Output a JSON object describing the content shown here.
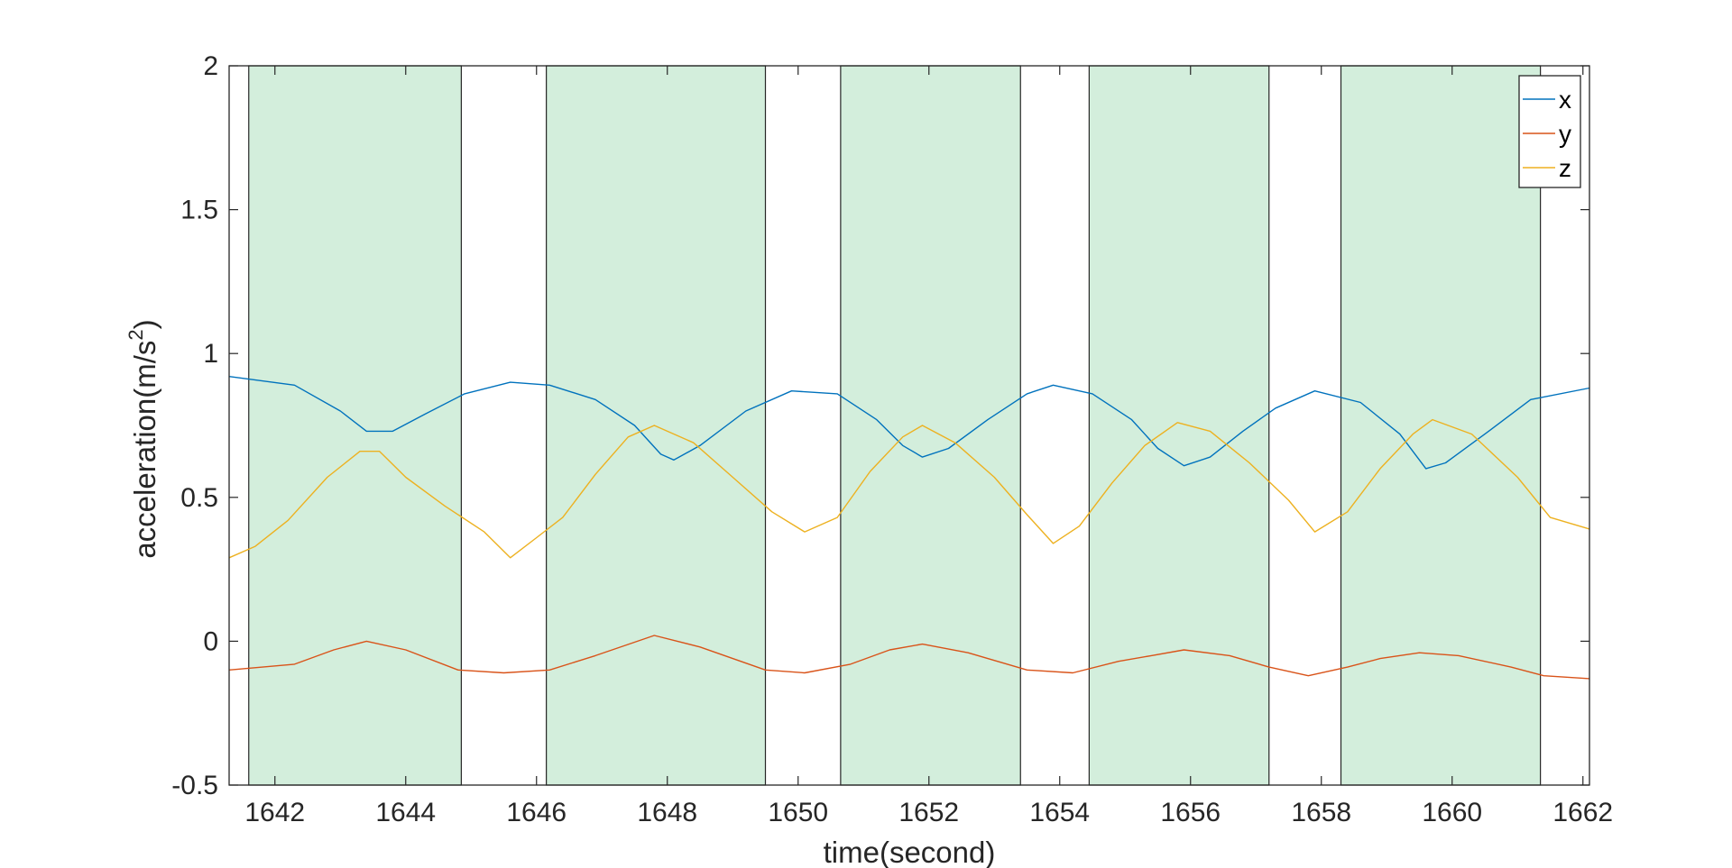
{
  "chart_data": {
    "type": "line",
    "xlabel": "time(second)",
    "ylabel": "acceleration(m/s",
    "ylabel_superscript": "2",
    "ylabel_suffix": ")",
    "xlim": [
      1641.3,
      1662.1
    ],
    "ylim": [
      -0.5,
      2
    ],
    "x_ticks": [
      1642,
      1644,
      1646,
      1648,
      1650,
      1652,
      1654,
      1656,
      1658,
      1660,
      1662
    ],
    "y_ticks": [
      -0.5,
      0,
      0.5,
      1,
      1.5,
      2
    ],
    "y_tick_labels": [
      "-0.5",
      "0",
      "0.5",
      "1",
      "1.5",
      "2"
    ],
    "grid": false,
    "legend_position": "top-right",
    "shaded_intervals": [
      [
        1641.6,
        1644.85
      ],
      [
        1646.15,
        1649.5
      ],
      [
        1650.65,
        1653.4
      ],
      [
        1654.45,
        1657.2
      ],
      [
        1658.3,
        1661.35
      ]
    ],
    "shade_color": "#d3eedc",
    "series": [
      {
        "name": "x",
        "color": "#0072bd",
        "points": [
          [
            1641.3,
            0.92
          ],
          [
            1642.3,
            0.89
          ],
          [
            1643.0,
            0.8
          ],
          [
            1643.4,
            0.73
          ],
          [
            1643.8,
            0.73
          ],
          [
            1644.3,
            0.79
          ],
          [
            1644.9,
            0.86
          ],
          [
            1645.6,
            0.9
          ],
          [
            1646.2,
            0.89
          ],
          [
            1646.9,
            0.84
          ],
          [
            1647.5,
            0.75
          ],
          [
            1647.9,
            0.65
          ],
          [
            1648.1,
            0.63
          ],
          [
            1648.5,
            0.68
          ],
          [
            1649.2,
            0.8
          ],
          [
            1649.9,
            0.87
          ],
          [
            1650.6,
            0.86
          ],
          [
            1651.2,
            0.77
          ],
          [
            1651.6,
            0.68
          ],
          [
            1651.9,
            0.64
          ],
          [
            1652.3,
            0.67
          ],
          [
            1652.9,
            0.77
          ],
          [
            1653.5,
            0.86
          ],
          [
            1653.9,
            0.89
          ],
          [
            1654.5,
            0.86
          ],
          [
            1655.1,
            0.77
          ],
          [
            1655.5,
            0.67
          ],
          [
            1655.9,
            0.61
          ],
          [
            1656.3,
            0.64
          ],
          [
            1656.8,
            0.73
          ],
          [
            1657.3,
            0.81
          ],
          [
            1657.9,
            0.87
          ],
          [
            1658.6,
            0.83
          ],
          [
            1659.2,
            0.72
          ],
          [
            1659.6,
            0.6
          ],
          [
            1659.9,
            0.62
          ],
          [
            1660.5,
            0.72
          ],
          [
            1661.2,
            0.84
          ],
          [
            1662.1,
            0.88
          ]
        ]
      },
      {
        "name": "y",
        "color": "#d95319",
        "points": [
          [
            1641.3,
            -0.1
          ],
          [
            1642.3,
            -0.08
          ],
          [
            1642.9,
            -0.03
          ],
          [
            1643.4,
            0.0
          ],
          [
            1644.0,
            -0.03
          ],
          [
            1644.8,
            -0.1
          ],
          [
            1645.5,
            -0.11
          ],
          [
            1646.2,
            -0.1
          ],
          [
            1646.9,
            -0.05
          ],
          [
            1647.8,
            0.02
          ],
          [
            1648.5,
            -0.02
          ],
          [
            1649.5,
            -0.1
          ],
          [
            1650.1,
            -0.11
          ],
          [
            1650.8,
            -0.08
          ],
          [
            1651.4,
            -0.03
          ],
          [
            1651.9,
            -0.01
          ],
          [
            1652.6,
            -0.04
          ],
          [
            1653.5,
            -0.1
          ],
          [
            1654.2,
            -0.11
          ],
          [
            1654.9,
            -0.07
          ],
          [
            1655.4,
            -0.05
          ],
          [
            1655.9,
            -0.03
          ],
          [
            1656.6,
            -0.05
          ],
          [
            1657.2,
            -0.09
          ],
          [
            1657.8,
            -0.12
          ],
          [
            1658.4,
            -0.09
          ],
          [
            1658.9,
            -0.06
          ],
          [
            1659.5,
            -0.04
          ],
          [
            1660.1,
            -0.05
          ],
          [
            1660.9,
            -0.09
          ],
          [
            1661.4,
            -0.12
          ],
          [
            1662.1,
            -0.13
          ]
        ]
      },
      {
        "name": "z",
        "color": "#edb120",
        "points": [
          [
            1641.3,
            0.29
          ],
          [
            1641.7,
            0.33
          ],
          [
            1642.2,
            0.42
          ],
          [
            1642.8,
            0.57
          ],
          [
            1643.3,
            0.66
          ],
          [
            1643.6,
            0.66
          ],
          [
            1644.0,
            0.57
          ],
          [
            1644.6,
            0.47
          ],
          [
            1645.2,
            0.38
          ],
          [
            1645.6,
            0.29
          ],
          [
            1646.0,
            0.36
          ],
          [
            1646.4,
            0.43
          ],
          [
            1646.9,
            0.58
          ],
          [
            1647.4,
            0.71
          ],
          [
            1647.8,
            0.75
          ],
          [
            1648.4,
            0.69
          ],
          [
            1649.0,
            0.57
          ],
          [
            1649.6,
            0.45
          ],
          [
            1650.1,
            0.38
          ],
          [
            1650.6,
            0.43
          ],
          [
            1651.1,
            0.59
          ],
          [
            1651.6,
            0.71
          ],
          [
            1651.9,
            0.75
          ],
          [
            1652.4,
            0.69
          ],
          [
            1653.0,
            0.57
          ],
          [
            1653.5,
            0.44
          ],
          [
            1653.9,
            0.34
          ],
          [
            1654.3,
            0.4
          ],
          [
            1654.8,
            0.55
          ],
          [
            1655.3,
            0.68
          ],
          [
            1655.8,
            0.76
          ],
          [
            1656.3,
            0.73
          ],
          [
            1656.9,
            0.62
          ],
          [
            1657.5,
            0.49
          ],
          [
            1657.9,
            0.38
          ],
          [
            1658.4,
            0.45
          ],
          [
            1658.9,
            0.6
          ],
          [
            1659.4,
            0.72
          ],
          [
            1659.7,
            0.77
          ],
          [
            1660.3,
            0.72
          ],
          [
            1661.0,
            0.57
          ],
          [
            1661.5,
            0.43
          ],
          [
            1662.1,
            0.39
          ]
        ]
      }
    ]
  }
}
